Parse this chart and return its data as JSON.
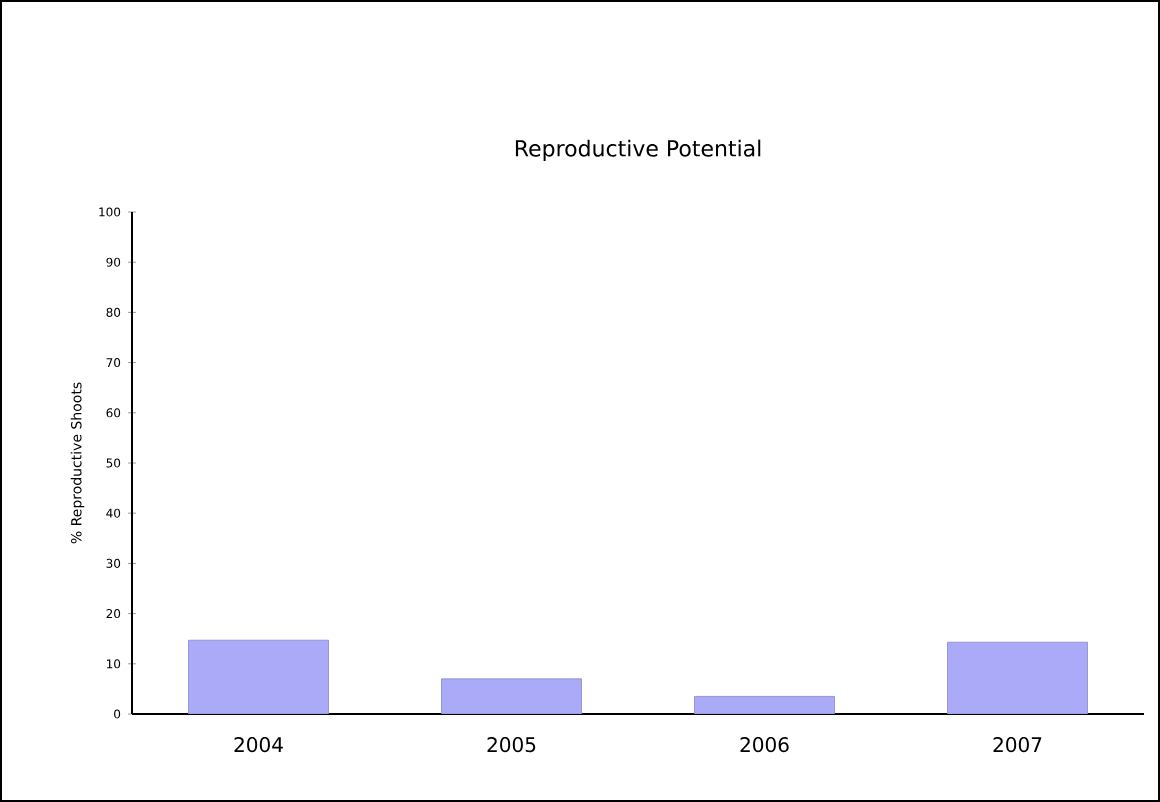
{
  "chart_data": {
    "type": "bar",
    "title": "Reproductive Potential",
    "ylabel": "% Reproductive Shoots",
    "categories": [
      "2004",
      "2005",
      "2006",
      "2007"
    ],
    "values": [
      14.7,
      7.0,
      3.5,
      14.3
    ],
    "color": "#aaaaf8",
    "ylim": [
      0,
      100
    ],
    "yticks": [
      0,
      10,
      20,
      30,
      40,
      50,
      60,
      70,
      80,
      90,
      100
    ],
    "grid": false
  }
}
